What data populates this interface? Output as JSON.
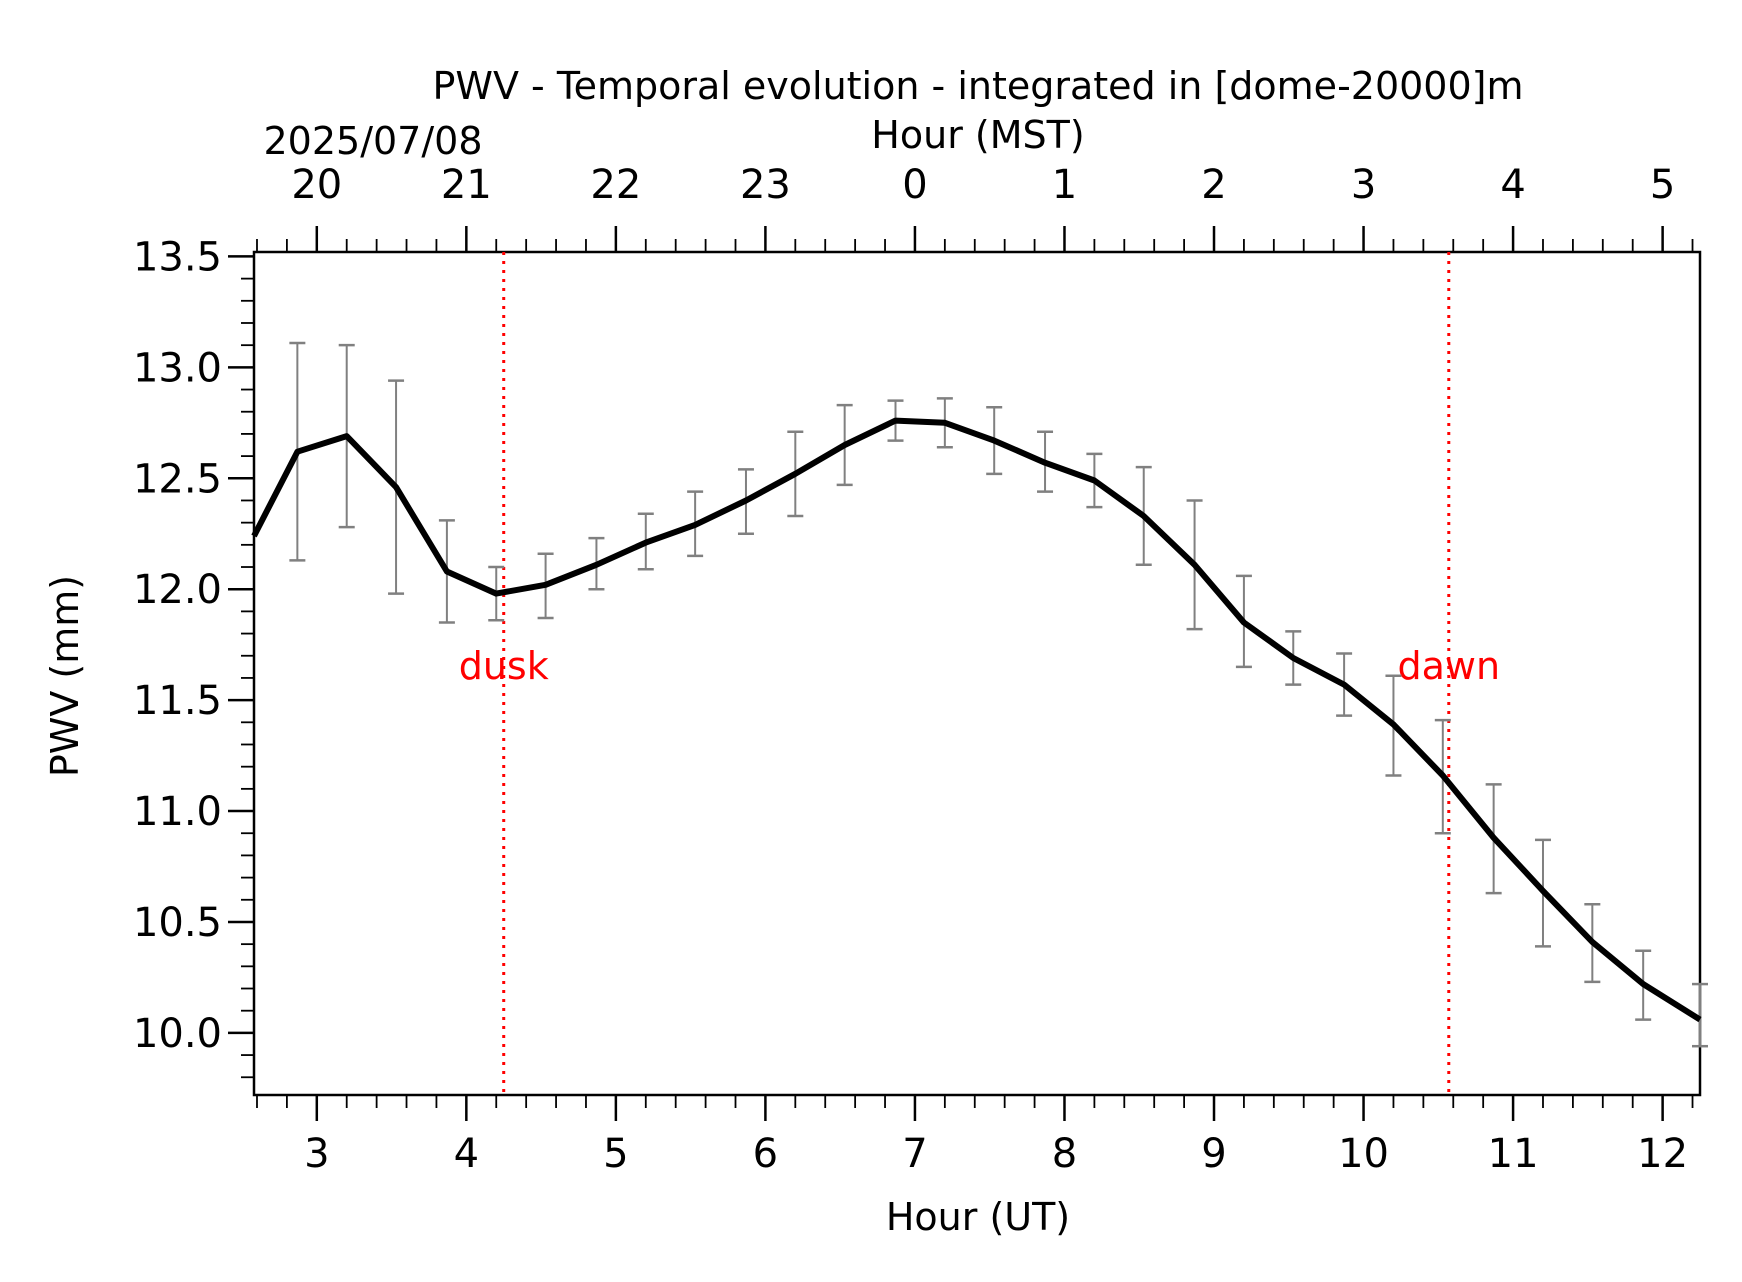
{
  "chart_data": {
    "type": "line",
    "title": "PWV - Temporal evolution - integrated in [dome-20000]m",
    "xlabel": "Hour (UT)",
    "ylabel": "PWV (mm)",
    "top_axis": {
      "label": "Hour (MST)",
      "date": "2025/07/08",
      "offset_hours": -7,
      "tick_labels": [
        "20",
        "21",
        "22",
        "23",
        "0",
        "1",
        "2",
        "3",
        "4",
        "5"
      ]
    },
    "xlim": [
      2.58,
      12.25
    ],
    "ylim": [
      9.72,
      13.52
    ],
    "x_ticks": [
      3,
      4,
      5,
      6,
      7,
      8,
      9,
      10,
      11,
      12
    ],
    "x_tick_labels": [
      "3",
      "4",
      "5",
      "6",
      "7",
      "8",
      "9",
      "10",
      "11",
      "12"
    ],
    "y_ticks": [
      10.0,
      10.5,
      11.0,
      11.5,
      12.0,
      12.5,
      13.0,
      13.5
    ],
    "y_tick_labels": [
      "10.0",
      "10.5",
      "11.0",
      "11.5",
      "12.0",
      "12.5",
      "13.0",
      "13.5"
    ],
    "grid": false,
    "series": [
      {
        "name": "PWV",
        "color": "#000000",
        "error_color": "#808080",
        "x": [
          2.58,
          2.87,
          3.2,
          3.53,
          3.87,
          4.2,
          4.53,
          4.87,
          5.2,
          5.53,
          5.87,
          6.2,
          6.53,
          6.87,
          7.2,
          7.53,
          7.87,
          8.2,
          8.53,
          8.87,
          9.2,
          9.53,
          9.87,
          10.2,
          10.53,
          10.87,
          11.2,
          11.53,
          11.87,
          12.25
        ],
        "y": [
          12.24,
          12.62,
          12.69,
          12.46,
          12.08,
          11.98,
          12.02,
          12.11,
          12.21,
          12.29,
          12.4,
          12.52,
          12.65,
          12.76,
          12.75,
          12.67,
          12.57,
          12.49,
          12.33,
          12.11,
          11.85,
          11.69,
          11.57,
          11.39,
          11.16,
          10.88,
          10.64,
          10.41,
          10.22,
          10.06
        ],
        "y_err_low": [
          null,
          12.13,
          12.28,
          11.98,
          11.85,
          11.86,
          11.87,
          12.0,
          12.09,
          12.15,
          12.25,
          12.33,
          12.47,
          12.67,
          12.64,
          12.52,
          12.44,
          12.37,
          12.11,
          11.82,
          11.65,
          11.57,
          11.43,
          11.16,
          10.9,
          10.63,
          10.39,
          10.23,
          10.06,
          9.94
        ],
        "y_err_high": [
          null,
          13.11,
          13.1,
          12.94,
          12.31,
          12.1,
          12.16,
          12.23,
          12.34,
          12.44,
          12.54,
          12.71,
          12.83,
          12.85,
          12.86,
          12.82,
          12.71,
          12.61,
          12.55,
          12.4,
          12.06,
          11.81,
          11.71,
          11.61,
          11.41,
          11.12,
          10.87,
          10.58,
          10.37,
          10.22
        ]
      }
    ],
    "annotations": [
      {
        "label": "dusk",
        "x": 4.25,
        "color": "#ff0000",
        "text_y": 11.65
      },
      {
        "label": "dawn",
        "x": 10.57,
        "color": "#ff0000",
        "text_y": 11.65
      }
    ]
  }
}
